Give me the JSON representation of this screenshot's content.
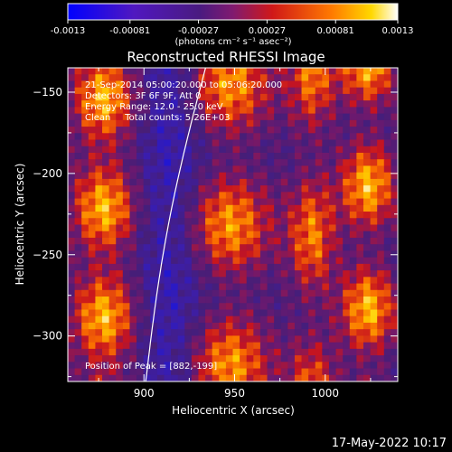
{
  "colorbar": {
    "tick_labels": [
      "-0.0013",
      "-0.00081",
      "-0.00027",
      "0.00027",
      "0.00081",
      "0.0013"
    ],
    "ticks": [
      -0.0013,
      -0.00081,
      -0.00027,
      0.00027,
      0.00081,
      0.0013
    ],
    "range": [
      -0.0013,
      0.0013
    ],
    "unit_label": "(photons cm⁻² s⁻¹ asec⁻²)",
    "colors": [
      "#0000ff",
      "#7a18c8",
      "#5a1a8a",
      "#a01a60",
      "#e02010",
      "#ff8a00",
      "#ffe000",
      "#ffffff"
    ]
  },
  "chart_data": {
    "type": "heatmap",
    "title": "Reconstructed RHESSI Image",
    "xlabel": "Heliocentric X (arcsec)",
    "ylabel": "Heliocentric Y (arcsec)",
    "xlim": [
      858,
      1040
    ],
    "ylim": [
      -328,
      -135
    ],
    "x_ticks": [
      900,
      950,
      1000
    ],
    "y_ticks": [
      -150,
      -200,
      -250,
      -300
    ],
    "x_tick_labels": [
      "900",
      "950",
      "1000"
    ],
    "y_tick_labels": [
      "−150",
      "−200",
      "−250",
      "−300"
    ],
    "annotations": [
      "21-Sep-2014 05:00:20.000 to 05:06:20.000",
      "Detectors: 3F 6F 9F, Att 0",
      "Energy Range: 12.0 - 25.0 keV",
      "Clean     Total counts: 5.26E+03"
    ],
    "peak_label": "Position of Peak = [882,-199]",
    "limb": "solar limb arc from (934,-135) to (901,-328)"
  },
  "footer": {
    "timestamp": "17-May-2022 10:17"
  }
}
